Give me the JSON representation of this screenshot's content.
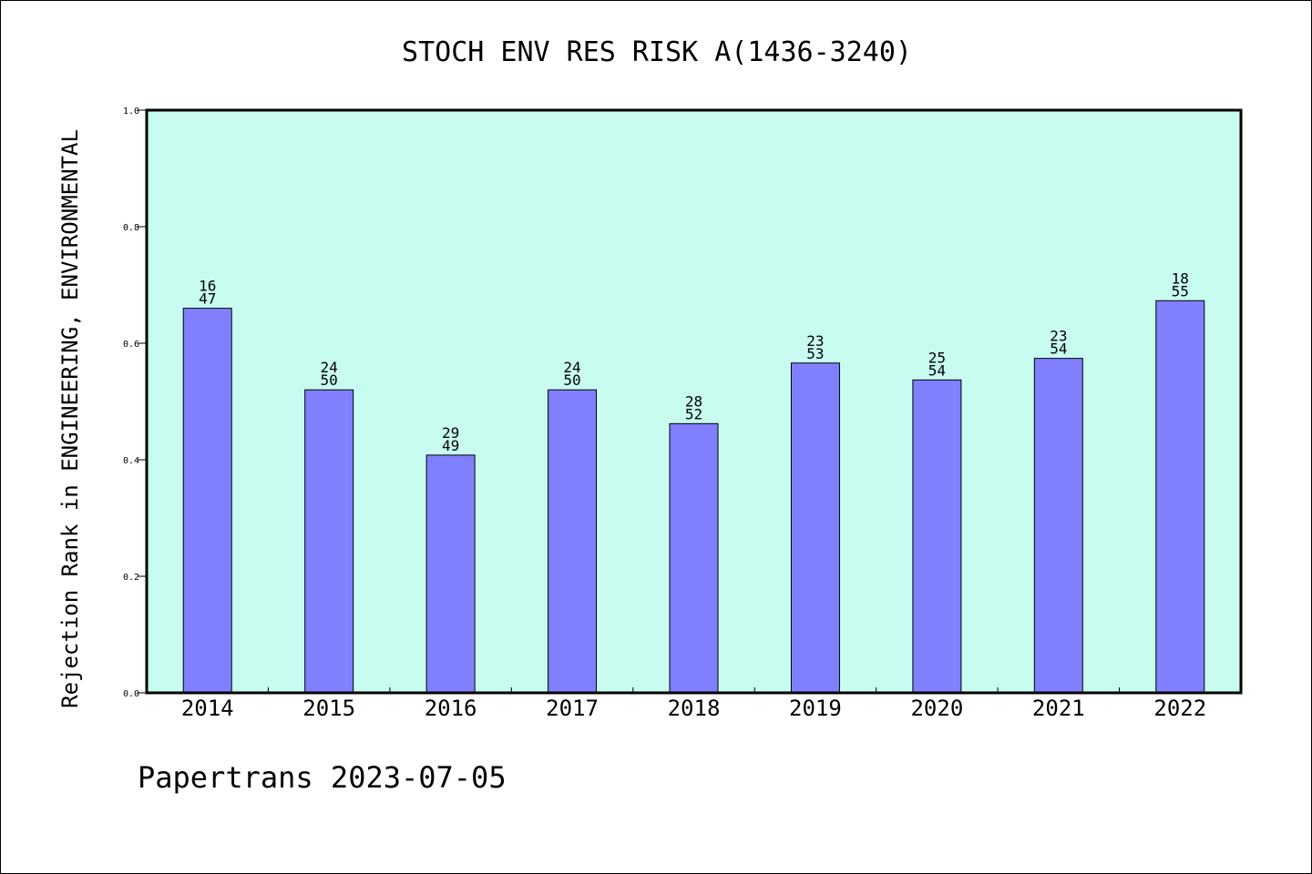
{
  "chart_data": {
    "type": "bar",
    "title": "STOCH ENV RES RISK A(1436-3240)",
    "ylabel": "Rejection Rank in ENGINEERING, ENVIRONMENTAL",
    "xlabel": "",
    "categories": [
      "2014",
      "2015",
      "2016",
      "2017",
      "2018",
      "2019",
      "2020",
      "2021",
      "2022"
    ],
    "values": [
      0.66,
      0.52,
      0.408,
      0.52,
      0.462,
      0.566,
      0.537,
      0.574,
      0.673
    ],
    "bar_labels": [
      [
        "16",
        "47"
      ],
      [
        "24",
        "50"
      ],
      [
        "29",
        "49"
      ],
      [
        "24",
        "50"
      ],
      [
        "28",
        "52"
      ],
      [
        "23",
        "53"
      ],
      [
        "25",
        "54"
      ],
      [
        "23",
        "54"
      ],
      [
        "18",
        "55"
      ]
    ],
    "ylim": [
      0,
      1.0
    ],
    "yticks": [
      "0.0",
      "0.2",
      "0.4",
      "0.6",
      "0.8",
      "1.0"
    ],
    "grid": false,
    "legend": "none"
  },
  "footer": {
    "text": "Papertrans 2023-07-05"
  },
  "colors": {
    "background": "#ffffff",
    "plot_area": "#c8fcf0",
    "bar_fill": "#8080ff",
    "bar_stroke": "#000000",
    "axis": "#000000",
    "text": "#000000"
  }
}
